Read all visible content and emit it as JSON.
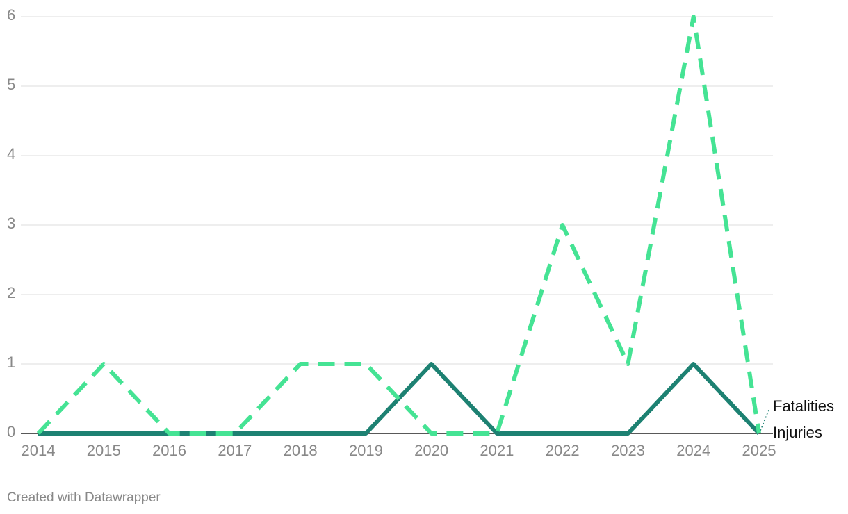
{
  "chart_data": {
    "type": "line",
    "x": [
      2014,
      2015,
      2016,
      2017,
      2018,
      2019,
      2020,
      2021,
      2022,
      2023,
      2024,
      2025
    ],
    "series": [
      {
        "name": "Fatalities",
        "color": "#1d8172",
        "dash": false,
        "values": [
          0,
          0,
          0,
          0,
          0,
          0,
          1,
          0,
          0,
          0,
          1,
          0
        ]
      },
      {
        "name": "Injuries",
        "color": "#45e394",
        "dash": true,
        "values": [
          0,
          1,
          0,
          0,
          1,
          1,
          0,
          0,
          3,
          1,
          6,
          0
        ]
      }
    ],
    "xlim": [
      2014,
      2025
    ],
    "xticks": [
      2014,
      2015,
      2016,
      2017,
      2018,
      2019,
      2020,
      2021,
      2022,
      2023,
      2024,
      2025
    ],
    "ylim": [
      0,
      6
    ],
    "yticks": [
      0,
      1,
      2,
      3,
      4,
      5,
      6
    ],
    "grid": true,
    "footer": "Created with Datawrapper"
  }
}
